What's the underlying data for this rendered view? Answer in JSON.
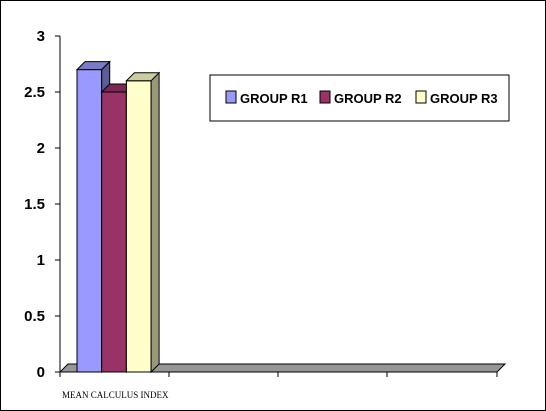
{
  "chart_data": {
    "type": "bar",
    "categories": [
      "MEAN CALCULUS INDEX"
    ],
    "series": [
      {
        "name": "GROUP R1",
        "values": [
          2.7
        ],
        "color": "#9999ff"
      },
      {
        "name": "GROUP R2",
        "values": [
          2.5
        ],
        "color": "#993366"
      },
      {
        "name": "GROUP R3",
        "values": [
          2.6
        ],
        "color": "#ffffcc"
      }
    ],
    "yticks": [
      "0",
      "0.5",
      "1",
      "1.5",
      "2",
      "2.5",
      "3"
    ],
    "ylim": [
      0,
      3
    ],
    "style": "3d-bar",
    "floor_color": "#969696",
    "grid": false,
    "legend_position": "top-right"
  }
}
